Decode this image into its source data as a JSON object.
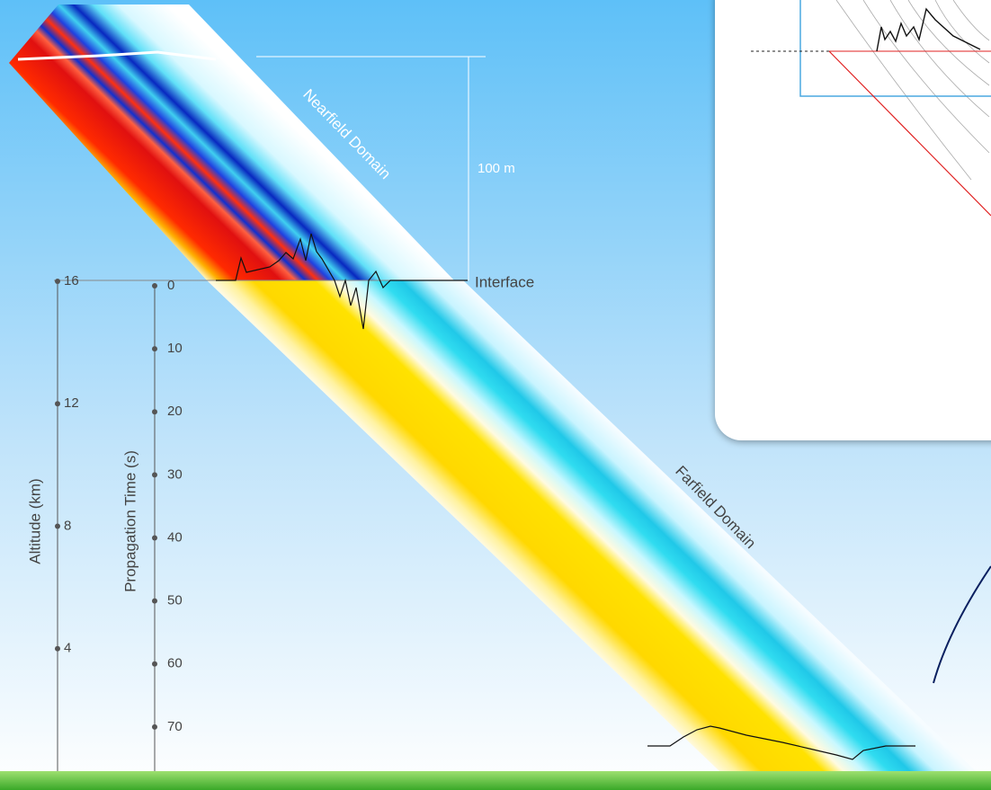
{
  "nearfield_label": "Nearfield Domain",
  "farfield_label": "Farfield Domain",
  "dimension_label": "100 m",
  "interface_label": "Interface",
  "altitude_axis": {
    "label": "Altitude (km)",
    "range": [
      0,
      16
    ],
    "ticks": [
      16,
      12,
      8,
      4
    ]
  },
  "time_axis": {
    "label": "Propagation Time (s)",
    "range": [
      0,
      77
    ],
    "ticks": [
      0,
      10,
      20,
      30,
      40,
      50,
      60,
      70
    ]
  }
}
